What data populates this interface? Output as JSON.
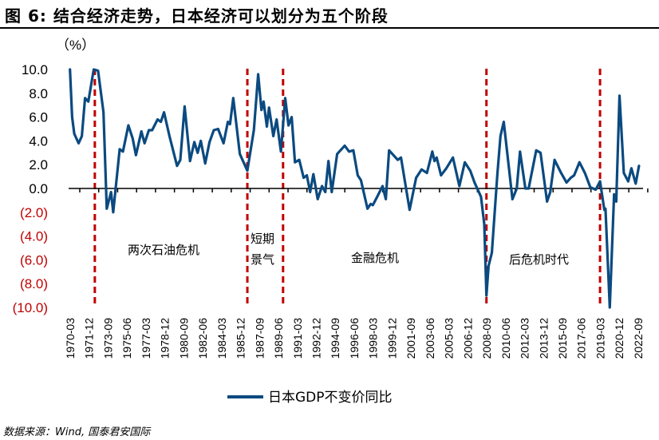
{
  "title": "图 6:  结合经济走势，日本经济可以划分为五个阶段",
  "source": "数据来源：Wind, 国泰君安国际",
  "chart_data": {
    "type": "line",
    "title": "结合经济走势，日本经济可以划分为五个阶段",
    "ylabel": "（%）",
    "xlabel": "",
    "ylim": [
      -10,
      10
    ],
    "xlim": [
      1970.125,
      2022.625
    ],
    "yticks": [
      10,
      8,
      6,
      4,
      2,
      0,
      -2,
      -4,
      -6,
      -8,
      -10
    ],
    "ytick_labels": [
      "10.0",
      "8.0",
      "6.0",
      "4.0",
      "2.0",
      "0.0",
      "(2.0)",
      "(4.0)",
      "(6.0)",
      "(8.0)",
      "(10.0)"
    ],
    "negative_label_color": "#c00000",
    "xtick_labels": [
      "1970-03",
      "1971-12",
      "1973-09",
      "1975-06",
      "1977-03",
      "1978-12",
      "1980-09",
      "1982-06",
      "1984-03",
      "1985-12",
      "1987-09",
      "1989-06",
      "1991-03",
      "1992-12",
      "1994-09",
      "1996-06",
      "1998-03",
      "1999-12",
      "2001-09",
      "2003-06",
      "2005-03",
      "2006-12",
      "2008-09",
      "2010-06",
      "2012-03",
      "2013-12",
      "2015-09",
      "2017-06",
      "2019-03",
      "2020-12",
      "2022-09"
    ],
    "legend": {
      "position": "bottom",
      "entries": [
        "日本GDP不变价同比"
      ]
    },
    "series": [
      {
        "name": "日本GDP不变价同比",
        "color": "#0b4a80",
        "x": [
          1970.1,
          1970.3,
          1970.5,
          1970.9,
          1971.2,
          1971.5,
          1971.8,
          1972.3,
          1972.7,
          1973.2,
          1973.5,
          1973.9,
          1974.1,
          1974.7,
          1975.0,
          1975.5,
          1975.9,
          1976.2,
          1976.7,
          1977.0,
          1977.4,
          1977.7,
          1978.2,
          1978.5,
          1978.8,
          1979.3,
          1980.0,
          1980.3,
          1980.7,
          1981.2,
          1981.6,
          1981.9,
          1982.2,
          1982.6,
          1983.0,
          1983.4,
          1983.8,
          1984.3,
          1984.7,
          1984.9,
          1985.2,
          1985.8,
          1986.3,
          1986.5,
          1987.1,
          1987.5,
          1987.8,
          1988.0,
          1988.3,
          1988.5,
          1988.9,
          1989.2,
          1989.6,
          1990.0,
          1990.3,
          1990.6,
          1990.9,
          1991.3,
          1991.7,
          1992.0,
          1992.3,
          1992.6,
          1993.0,
          1993.4,
          1993.7,
          1994.0,
          1994.3,
          1994.8,
          1995.5,
          1995.9,
          1996.3,
          1996.7,
          1997.0,
          1997.6,
          1997.9,
          1998.1,
          1998.5,
          1999.0,
          1999.3,
          1999.6,
          2000.4,
          2000.7,
          2001.5,
          2002.1,
          2002.6,
          2003.1,
          2003.6,
          2003.8,
          2004.0,
          2004.4,
          2004.9,
          2005.5,
          2006.1,
          2006.6,
          2007.1,
          2007.5,
          2008.1,
          2008.4,
          2008.6,
          2008.8,
          2009.1,
          2009.6,
          2009.9,
          2010.2,
          2011.0,
          2011.4,
          2011.7,
          2012.2,
          2012.5,
          2013.2,
          2013.6,
          2014.2,
          2014.5,
          2014.9,
          2015.5,
          2016.0,
          2016.4,
          2016.7,
          2017.2,
          2017.7,
          2018.2,
          2018.7,
          2019.1,
          2019.5,
          2019.6,
          2020.0,
          2020.4,
          2020.6,
          2020.9,
          2021.3,
          2021.7,
          2022.0,
          2022.4,
          2022.7
        ],
        "values": [
          10.0,
          6.0,
          4.6,
          3.8,
          4.4,
          7.6,
          7.3,
          10.0,
          9.9,
          6.4,
          -1.7,
          -0.3,
          -2.0,
          3.3,
          3.1,
          5.3,
          4.2,
          2.8,
          4.8,
          3.8,
          4.9,
          4.9,
          5.8,
          5.6,
          6.4,
          4.4,
          1.9,
          2.4,
          6.9,
          2.3,
          3.9,
          3.0,
          4.0,
          2.1,
          3.9,
          4.9,
          5.0,
          3.8,
          5.6,
          5.4,
          7.6,
          2.9,
          1.9,
          1.5,
          4.9,
          9.6,
          6.6,
          7.3,
          5.2,
          6.8,
          4.4,
          5.8,
          3.1,
          7.6,
          5.3,
          6.0,
          2.2,
          2.4,
          0.9,
          1.1,
          -0.3,
          1.2,
          -0.9,
          0.2,
          -0.3,
          2.3,
          -0.3,
          2.9,
          3.6,
          3.1,
          3.2,
          1.1,
          0.7,
          -1.7,
          -1.3,
          -1.4,
          -0.7,
          0.2,
          -0.9,
          3.2,
          2.4,
          2.6,
          -1.8,
          0.9,
          1.6,
          1.3,
          3.1,
          2.3,
          2.6,
          1.1,
          1.7,
          2.6,
          0.2,
          2.2,
          1.5,
          0.5,
          -0.7,
          -3.0,
          -9.0,
          -6.5,
          -5.4,
          1.1,
          4.4,
          5.6,
          -0.9,
          0.0,
          3.1,
          0.0,
          0.0,
          3.2,
          3.0,
          -1.1,
          -0.3,
          2.4,
          1.3,
          0.5,
          0.9,
          1.1,
          2.2,
          1.3,
          0.1,
          -0.1,
          0.6,
          -1.8,
          -1.7,
          -10.0,
          -0.5,
          -1.1,
          7.8,
          1.3,
          0.6,
          1.7,
          0.4,
          1.9
        ]
      }
    ],
    "phase_dividers": [
      1972.4,
      1986.5,
      1989.8,
      2008.6,
      2019.1
    ],
    "divider_color": "#c00000",
    "annotations": [
      {
        "text": "两次石油危机"
      },
      {
        "text": "短期"
      },
      {
        "text": "景气"
      },
      {
        "text": "金融危机"
      },
      {
        "text": "后危机时代"
      }
    ]
  }
}
